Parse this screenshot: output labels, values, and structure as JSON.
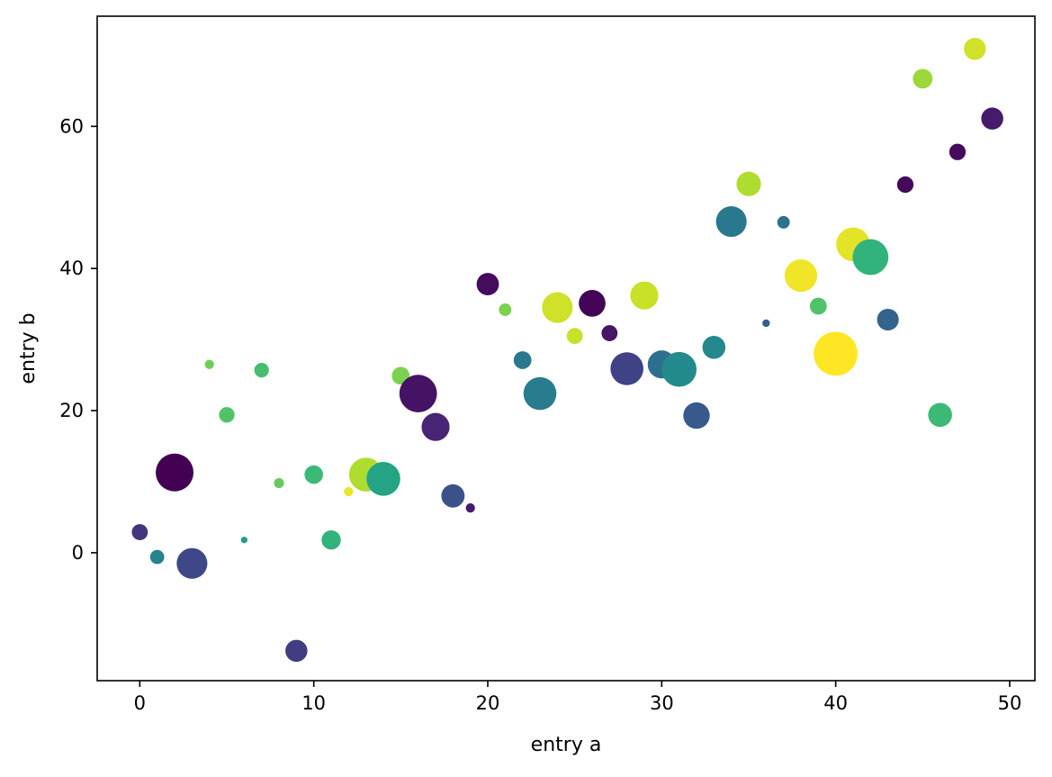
{
  "chart_data": {
    "type": "scatter",
    "title": "",
    "xlabel": "entry a",
    "ylabel": "entry b",
    "xlim": [
      -2.45,
      51.45
    ],
    "ylim": [
      -18,
      75.5
    ],
    "xticks": [
      0,
      10,
      20,
      30,
      40,
      50
    ],
    "yticks": [
      0,
      20,
      40,
      60
    ],
    "grid": false,
    "colormap": [
      "#440154",
      "#482878",
      "#3e4989",
      "#31688e",
      "#26828e",
      "#1f9e89",
      "#35b779",
      "#6ece58",
      "#b5de2b",
      "#fde725"
    ],
    "points": [
      {
        "x": 0,
        "y": 2.9,
        "c": 0.15,
        "size": 0.18
      },
      {
        "x": 1,
        "y": -0.6,
        "c": 0.45,
        "size": 0.14
      },
      {
        "x": 2,
        "y": 11.3,
        "c": 0.0,
        "size": 1.0
      },
      {
        "x": 3,
        "y": -1.5,
        "c": 0.22,
        "size": 0.66
      },
      {
        "x": 4,
        "y": 26.5,
        "c": 0.78,
        "size": 0.06
      },
      {
        "x": 5,
        "y": 19.4,
        "c": 0.72,
        "size": 0.17
      },
      {
        "x": 6,
        "y": 1.8,
        "c": 0.55,
        "size": 0.03
      },
      {
        "x": 7,
        "y": 25.7,
        "c": 0.7,
        "size": 0.15
      },
      {
        "x": 8,
        "y": 9.8,
        "c": 0.76,
        "size": 0.07
      },
      {
        "x": 9,
        "y": -13.8,
        "c": 0.18,
        "size": 0.34
      },
      {
        "x": 10,
        "y": 11.0,
        "c": 0.68,
        "size": 0.24
      },
      {
        "x": 11,
        "y": 1.8,
        "c": 0.65,
        "size": 0.26
      },
      {
        "x": 12,
        "y": 8.6,
        "c": 0.97,
        "size": 0.06
      },
      {
        "x": 13,
        "y": 11.0,
        "c": 0.88,
        "size": 0.8
      },
      {
        "x": 14,
        "y": 10.4,
        "c": 0.58,
        "size": 0.8
      },
      {
        "x": 15,
        "y": 24.9,
        "c": 0.8,
        "size": 0.22
      },
      {
        "x": 16,
        "y": 22.4,
        "c": 0.05,
        "size": 0.99
      },
      {
        "x": 17,
        "y": 17.7,
        "c": 0.1,
        "size": 0.55
      },
      {
        "x": 18,
        "y": 8.0,
        "c": 0.25,
        "size": 0.38
      },
      {
        "x": 19,
        "y": 6.3,
        "c": 0.07,
        "size": 0.06
      },
      {
        "x": 20,
        "y": 37.8,
        "c": 0.03,
        "size": 0.35
      },
      {
        "x": 21,
        "y": 34.2,
        "c": 0.8,
        "size": 0.11
      },
      {
        "x": 22,
        "y": 27.1,
        "c": 0.4,
        "size": 0.22
      },
      {
        "x": 23,
        "y": 22.4,
        "c": 0.42,
        "size": 0.76
      },
      {
        "x": 24,
        "y": 34.5,
        "c": 0.93,
        "size": 0.66
      },
      {
        "x": 25,
        "y": 30.5,
        "c": 0.92,
        "size": 0.18
      },
      {
        "x": 26,
        "y": 35.1,
        "c": 0.01,
        "size": 0.5
      },
      {
        "x": 27,
        "y": 30.9,
        "c": 0.06,
        "size": 0.18
      },
      {
        "x": 28,
        "y": 25.9,
        "c": 0.2,
        "size": 0.76
      },
      {
        "x": 29,
        "y": 36.2,
        "c": 0.92,
        "size": 0.55
      },
      {
        "x": 30,
        "y": 26.5,
        "c": 0.36,
        "size": 0.55
      },
      {
        "x": 31,
        "y": 25.8,
        "c": 0.48,
        "size": 0.85
      },
      {
        "x": 32,
        "y": 19.3,
        "c": 0.28,
        "size": 0.49
      },
      {
        "x": 33,
        "y": 28.9,
        "c": 0.47,
        "size": 0.37
      },
      {
        "x": 34,
        "y": 46.6,
        "c": 0.4,
        "size": 0.66
      },
      {
        "x": 35,
        "y": 51.9,
        "c": 0.88,
        "size": 0.42
      },
      {
        "x": 36,
        "y": 32.3,
        "c": 0.3,
        "size": 0.04
      },
      {
        "x": 37,
        "y": 46.5,
        "c": 0.38,
        "size": 0.11
      },
      {
        "x": 38,
        "y": 39.0,
        "c": 0.98,
        "size": 0.74
      },
      {
        "x": 39,
        "y": 34.7,
        "c": 0.72,
        "size": 0.2
      },
      {
        "x": 40,
        "y": 28.0,
        "c": 1.0,
        "size": 1.35
      },
      {
        "x": 41,
        "y": 43.4,
        "c": 0.96,
        "size": 0.8
      },
      {
        "x": 42,
        "y": 41.6,
        "c": 0.65,
        "size": 0.9
      },
      {
        "x": 43,
        "y": 32.8,
        "c": 0.32,
        "size": 0.33
      },
      {
        "x": 44,
        "y": 51.8,
        "c": 0.02,
        "size": 0.19
      },
      {
        "x": 45,
        "y": 66.7,
        "c": 0.85,
        "size": 0.27
      },
      {
        "x": 46,
        "y": 19.4,
        "c": 0.68,
        "size": 0.4
      },
      {
        "x": 47,
        "y": 56.4,
        "c": 0.03,
        "size": 0.19
      },
      {
        "x": 48,
        "y": 70.9,
        "c": 0.93,
        "size": 0.34
      },
      {
        "x": 49,
        "y": 61.1,
        "c": 0.07,
        "size": 0.34
      }
    ]
  }
}
